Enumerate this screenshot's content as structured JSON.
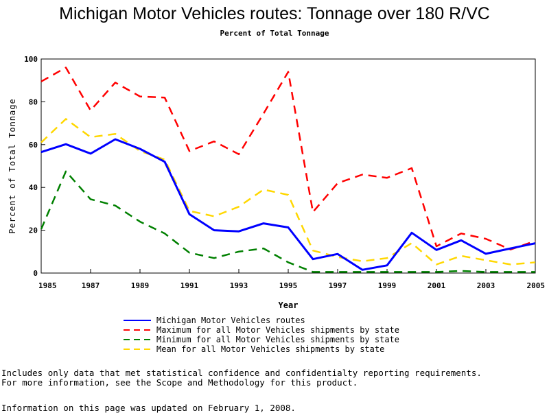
{
  "chart_data": {
    "type": "line",
    "title": "Michigan Motor Vehicles routes: Tonnage over 180 R/VC",
    "subtitle": "Percent of Total Tonnage",
    "xlabel": "Year",
    "ylabel": "Percent of Total Tonnage",
    "xlim": [
      1985,
      2005
    ],
    "ylim": [
      0,
      100
    ],
    "x_ticks": [
      1985,
      1987,
      1989,
      1991,
      1993,
      1995,
      1997,
      1999,
      2001,
      2003,
      2005
    ],
    "y_ticks": [
      0,
      20,
      40,
      60,
      80,
      100
    ],
    "x": [
      1985,
      1986,
      1987,
      1988,
      1989,
      1990,
      1991,
      1992,
      1993,
      1994,
      1995,
      1996,
      1997,
      1998,
      1999,
      2000,
      2001,
      2002,
      2003,
      2004,
      2005
    ],
    "series": [
      {
        "name": "Michigan Motor Vehicles routes",
        "color": "#0000ff",
        "style": "solid",
        "values": [
          56.5,
          60.2,
          55.8,
          62.5,
          58,
          52,
          27.5,
          20,
          19.5,
          23.2,
          21.3,
          6.5,
          8.9,
          1.5,
          3.6,
          18.8,
          10.8,
          15.3,
          9,
          11.5,
          13.9
        ]
      },
      {
        "name": "Maximum for all Motor Vehicles shipments by state",
        "color": "#ff0000",
        "style": "dashed",
        "values": [
          89.5,
          96,
          76,
          89,
          82.5,
          82,
          57,
          61.5,
          55.5,
          74.5,
          94,
          28.5,
          42,
          46,
          44.5,
          49,
          12.5,
          18.5,
          16,
          11,
          15
        ]
      },
      {
        "name": "Minimum for all Motor Vehicles shipments by state",
        "color": "#008000",
        "style": "dashed",
        "values": [
          20.5,
          47.5,
          34.5,
          31.5,
          24,
          18.5,
          9.5,
          7,
          10,
          11.5,
          5,
          0.5,
          0.5,
          0.5,
          0.5,
          0.5,
          0.5,
          1,
          0.5,
          0.5,
          0.5
        ]
      },
      {
        "name": "Mean for all Motor Vehicles shipments by state",
        "color": "#ffd700",
        "style": "dashed",
        "values": [
          61,
          72,
          63.5,
          65,
          57,
          53,
          29,
          26.5,
          31,
          39,
          36.5,
          10.5,
          7.5,
          5.5,
          7,
          14,
          4,
          8,
          6,
          4,
          5
        ]
      }
    ]
  },
  "footnotes": {
    "line1": "Includes only data that met statistical confidence and confidentialty reporting requirements.",
    "line2": "For more information, see the Scope and Methodology for this product.",
    "line3": "Information on this page was updated on February 1, 2008."
  }
}
